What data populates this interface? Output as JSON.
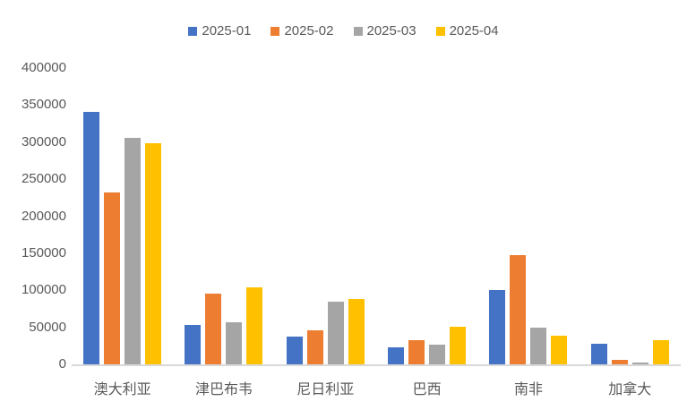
{
  "chart_data": {
    "type": "bar",
    "title": "",
    "xlabel": "",
    "ylabel": "",
    "categories": [
      "澳大利亚",
      "津巴布韦",
      "尼日利亚",
      "巴西",
      "南非",
      "加拿大"
    ],
    "series": [
      {
        "name": "2025-01",
        "color": "#4472C4",
        "values": [
          341000,
          53000,
          38000,
          23000,
          100000,
          28000
        ]
      },
      {
        "name": "2025-02",
        "color": "#ED7D31",
        "values": [
          232000,
          96000,
          46000,
          33000,
          148000,
          6000
        ]
      },
      {
        "name": "2025-03",
        "color": "#A5A5A5",
        "values": [
          306000,
          57000,
          85000,
          27000,
          50000,
          2000
        ]
      },
      {
        "name": "2025-04",
        "color": "#FFC000",
        "values": [
          298000,
          104000,
          88000,
          51000,
          39000,
          33000
        ]
      }
    ],
    "ylim": [
      0,
      400000
    ],
    "y_ticks": [
      "400000",
      "350000",
      "300000",
      "250000",
      "200000",
      "150000",
      "100000",
      "50000",
      "0"
    ],
    "grid": false,
    "legend_position": "top",
    "axis_line_color": "#D9D9D9",
    "label_color": "#595959"
  }
}
